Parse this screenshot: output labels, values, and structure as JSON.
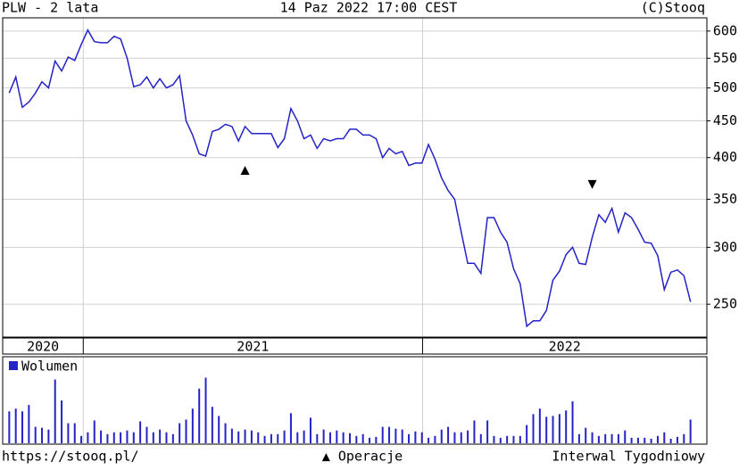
{
  "header": {
    "left": "PLW - 2 lata",
    "center": "14 Paz 2022 17:00 CEST",
    "right": "(C)Stooq"
  },
  "chart_data": {
    "type": "line",
    "log_scale": true,
    "grid": true,
    "color": "#2323c8",
    "values": [
      492,
      518,
      470,
      478,
      492,
      510,
      500,
      545,
      528,
      552,
      546,
      575,
      602,
      580,
      578,
      578,
      590,
      585,
      550,
      502,
      505,
      518,
      500,
      515,
      500,
      505,
      520,
      450,
      430,
      405,
      402,
      435,
      438,
      445,
      442,
      422,
      442,
      432,
      432,
      432,
      432,
      413,
      425,
      468,
      450,
      425,
      430,
      412,
      425,
      422,
      425,
      425,
      438,
      438,
      430,
      430,
      425,
      400,
      412,
      405,
      408,
      390,
      393,
      393,
      417,
      398,
      375,
      360,
      350,
      315,
      285,
      285,
      276,
      330,
      330,
      315,
      305,
      280,
      267,
      233,
      237,
      237,
      245,
      270,
      278,
      293,
      300,
      285,
      284,
      310,
      333,
      325,
      340,
      315,
      335,
      330,
      318,
      305,
      304,
      292,
      262,
      277,
      279,
      274,
      252
    ],
    "xlim": [
      -1,
      106.5
    ],
    "ylim": [
      225,
      626
    ],
    "yticks": [
      250,
      300,
      350,
      400,
      450,
      500,
      550,
      600
    ],
    "year_bands": [
      {
        "label": "2020",
        "from": -1,
        "to": 11.3
      },
      {
        "label": "2021",
        "from": 11.3,
        "to": 63.1
      },
      {
        "label": "2022",
        "from": 63.1,
        "to": 106.5
      }
    ],
    "markers": [
      {
        "symbol": "up",
        "x": 36,
        "y": 384
      },
      {
        "symbol": "down",
        "x": 89,
        "y": 367
      }
    ],
    "volume": {
      "label": "Wolumen",
      "color": "#2323c8",
      "ylim": [
        0,
        95
      ],
      "values": [
        35,
        38,
        35,
        42,
        18,
        17,
        15,
        70,
        47,
        22,
        22,
        8,
        12,
        25,
        14,
        10,
        12,
        12,
        14,
        12,
        24,
        18,
        12,
        15,
        12,
        10,
        22,
        26,
        38,
        60,
        72,
        40,
        30,
        22,
        16,
        13,
        15,
        14,
        12,
        8,
        10,
        10,
        14,
        33,
        12,
        14,
        28,
        10,
        15,
        12,
        14,
        12,
        11,
        8,
        10,
        6,
        7,
        18,
        18,
        16,
        15,
        10,
        13,
        12,
        6,
        8,
        15,
        18,
        12,
        12,
        14,
        25,
        10,
        25,
        8,
        6,
        8,
        8,
        8,
        20,
        32,
        38,
        29,
        30,
        32,
        36,
        46,
        10,
        17,
        12,
        8,
        10,
        10,
        10,
        14,
        6,
        6,
        6,
        5,
        8,
        12,
        5,
        7,
        10,
        26
      ]
    }
  },
  "footer": {
    "left": "https://stooq.pl/",
    "center": "▲ Operacje",
    "right": "Interwal Tygodniowy"
  }
}
